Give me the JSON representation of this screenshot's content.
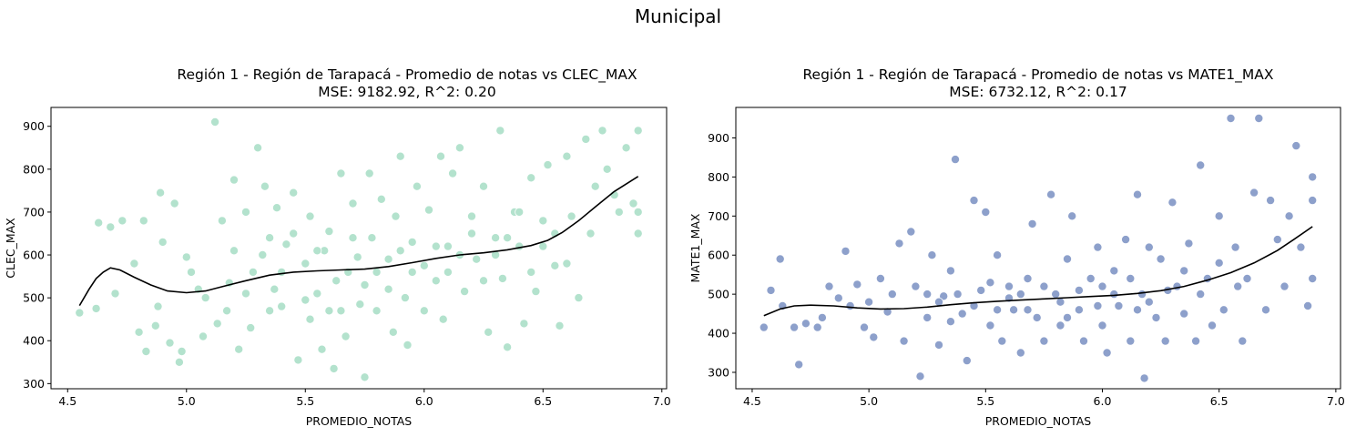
{
  "figure_title": "Municipal",
  "chart_data": [
    {
      "type": "scatter",
      "title": "Región 1 - Región de Tarapacá - Promedio de notas vs CLEC_MAX",
      "subtitle": "MSE: 9182.92, R^2: 0.20",
      "xlabel": "PROMEDIO_NOTAS",
      "ylabel": "CLEC_MAX",
      "xlim": [
        4.43,
        7.02
      ],
      "ylim": [
        288,
        944
      ],
      "xticks": [
        4.5,
        5.0,
        5.5,
        6.0,
        6.5,
        7.0
      ],
      "xtick_labels": [
        "4.5",
        "5.0",
        "5.5",
        "6.0",
        "6.5",
        "7.0"
      ],
      "yticks": [
        300,
        400,
        500,
        600,
        700,
        800,
        900
      ],
      "ytick_labels": [
        "300",
        "400",
        "500",
        "600",
        "700",
        "800",
        "900"
      ],
      "grid": false,
      "point_color": "#b3e2cd",
      "line_color": "#000000",
      "points": [
        [
          4.55,
          465
        ],
        [
          4.62,
          475
        ],
        [
          4.63,
          675
        ],
        [
          4.68,
          665
        ],
        [
          4.7,
          510
        ],
        [
          4.73,
          680
        ],
        [
          4.78,
          580
        ],
        [
          4.8,
          420
        ],
        [
          4.82,
          680
        ],
        [
          4.83,
          375
        ],
        [
          4.87,
          435
        ],
        [
          4.88,
          480
        ],
        [
          4.89,
          745
        ],
        [
          4.9,
          630
        ],
        [
          4.93,
          395
        ],
        [
          4.95,
          720
        ],
        [
          4.97,
          350
        ],
        [
          4.98,
          375
        ],
        [
          5.0,
          595
        ],
        [
          5.02,
          560
        ],
        [
          5.05,
          520
        ],
        [
          5.07,
          410
        ],
        [
          5.08,
          500
        ],
        [
          5.12,
          910
        ],
        [
          5.13,
          440
        ],
        [
          5.15,
          680
        ],
        [
          5.17,
          470
        ],
        [
          5.18,
          535
        ],
        [
          5.2,
          775
        ],
        [
          5.22,
          380
        ],
        [
          5.25,
          700
        ],
        [
          5.27,
          430
        ],
        [
          5.3,
          850
        ],
        [
          5.32,
          600
        ],
        [
          5.33,
          760
        ],
        [
          5.35,
          640
        ],
        [
          5.37,
          520
        ],
        [
          5.38,
          710
        ],
        [
          5.4,
          480
        ],
        [
          5.42,
          625
        ],
        [
          5.45,
          745
        ],
        [
          5.47,
          355
        ],
        [
          5.5,
          580
        ],
        [
          5.5,
          495
        ],
        [
          5.52,
          690
        ],
        [
          5.55,
          510
        ],
        [
          5.57,
          380
        ],
        [
          5.6,
          655
        ],
        [
          5.62,
          335
        ],
        [
          5.63,
          540
        ],
        [
          5.65,
          790
        ],
        [
          5.67,
          410
        ],
        [
          5.7,
          720
        ],
        [
          5.72,
          595
        ],
        [
          5.73,
          485
        ],
        [
          5.75,
          315
        ],
        [
          5.77,
          790
        ],
        [
          5.78,
          640
        ],
        [
          5.8,
          560
        ],
        [
          5.82,
          730
        ],
        [
          5.85,
          590
        ],
        [
          5.87,
          420
        ],
        [
          5.88,
          690
        ],
        [
          5.9,
          830
        ],
        [
          5.92,
          500
        ],
        [
          5.93,
          390
        ],
        [
          5.95,
          630
        ],
        [
          5.97,
          760
        ],
        [
          6.0,
          575
        ],
        [
          6.0,
          470
        ],
        [
          6.02,
          705
        ],
        [
          6.05,
          540
        ],
        [
          6.07,
          830
        ],
        [
          6.08,
          450
        ],
        [
          6.1,
          620
        ],
        [
          6.12,
          790
        ],
        [
          6.15,
          850
        ],
        [
          6.17,
          515
        ],
        [
          6.2,
          690
        ],
        [
          6.22,
          590
        ],
        [
          6.25,
          760
        ],
        [
          6.27,
          420
        ],
        [
          6.3,
          640
        ],
        [
          6.32,
          890
        ],
        [
          6.33,
          545
        ],
        [
          6.35,
          385
        ],
        [
          6.38,
          700
        ],
        [
          6.4,
          620
        ],
        [
          6.42,
          440
        ],
        [
          6.45,
          780
        ],
        [
          6.47,
          515
        ],
        [
          6.5,
          680
        ],
        [
          6.52,
          810
        ],
        [
          6.55,
          575
        ],
        [
          6.57,
          435
        ],
        [
          6.6,
          830
        ],
        [
          6.62,
          690
        ],
        [
          6.65,
          500
        ],
        [
          6.68,
          870
        ],
        [
          6.7,
          650
        ],
        [
          6.72,
          760
        ],
        [
          6.75,
          890
        ],
        [
          6.77,
          800
        ],
        [
          6.8,
          740
        ],
        [
          6.82,
          700
        ],
        [
          6.85,
          850
        ],
        [
          6.88,
          720
        ],
        [
          6.9,
          650
        ],
        [
          6.9,
          890
        ],
        [
          6.9,
          700
        ],
        [
          5.2,
          610
        ],
        [
          5.28,
          560
        ],
        [
          5.35,
          470
        ],
        [
          5.4,
          560
        ],
        [
          5.45,
          650
        ],
        [
          5.52,
          450
        ],
        [
          5.58,
          610
        ],
        [
          5.6,
          470
        ],
        [
          5.68,
          560
        ],
        [
          5.7,
          640
        ],
        [
          5.75,
          530
        ],
        [
          5.8,
          470
        ],
        [
          5.85,
          520
        ],
        [
          5.9,
          610
        ],
        [
          5.95,
          560
        ],
        [
          6.05,
          620
        ],
        [
          6.1,
          560
        ],
        [
          6.15,
          600
        ],
        [
          6.2,
          650
        ],
        [
          6.25,
          540
        ],
        [
          6.3,
          600
        ],
        [
          6.35,
          640
        ],
        [
          6.4,
          700
        ],
        [
          6.45,
          560
        ],
        [
          6.5,
          620
        ],
        [
          6.55,
          650
        ],
        [
          6.6,
          580
        ],
        [
          5.25,
          510
        ],
        [
          5.55,
          610
        ],
        [
          5.65,
          470
        ]
      ],
      "fit_curve": [
        [
          4.55,
          482
        ],
        [
          4.59,
          520
        ],
        [
          4.62,
          545
        ],
        [
          4.65,
          560
        ],
        [
          4.68,
          570
        ],
        [
          4.72,
          565
        ],
        [
          4.78,
          548
        ],
        [
          4.85,
          530
        ],
        [
          4.92,
          516
        ],
        [
          5.0,
          512
        ],
        [
          5.08,
          516
        ],
        [
          5.15,
          526
        ],
        [
          5.25,
          540
        ],
        [
          5.35,
          553
        ],
        [
          5.45,
          560
        ],
        [
          5.55,
          563
        ],
        [
          5.65,
          565
        ],
        [
          5.75,
          567
        ],
        [
          5.85,
          573
        ],
        [
          5.95,
          582
        ],
        [
          6.05,
          592
        ],
        [
          6.15,
          600
        ],
        [
          6.25,
          605
        ],
        [
          6.35,
          612
        ],
        [
          6.45,
          622
        ],
        [
          6.52,
          634
        ],
        [
          6.58,
          652
        ],
        [
          6.65,
          680
        ],
        [
          6.72,
          712
        ],
        [
          6.8,
          748
        ],
        [
          6.9,
          783
        ]
      ]
    },
    {
      "type": "scatter",
      "title": "Región 1 - Región de Tarapacá - Promedio de notas vs MATE1_MAX",
      "subtitle": "MSE: 6732.12, R^2: 0.17",
      "xlabel": "PROMEDIO_NOTAS",
      "ylabel": "MATE1_MAX",
      "xlim": [
        4.43,
        7.02
      ],
      "ylim": [
        258,
        978
      ],
      "xticks": [
        4.5,
        5.0,
        5.5,
        6.0,
        6.5,
        7.0
      ],
      "xtick_labels": [
        "4.5",
        "5.0",
        "5.5",
        "6.0",
        "6.5",
        "7.0"
      ],
      "yticks": [
        300,
        400,
        500,
        600,
        700,
        800,
        900
      ],
      "ytick_labels": [
        "300",
        "400",
        "500",
        "600",
        "700",
        "800",
        "900"
      ],
      "grid": false,
      "point_color": "#8da0cb",
      "line_color": "#000000",
      "points": [
        [
          4.55,
          415
        ],
        [
          4.58,
          510
        ],
        [
          4.62,
          590
        ],
        [
          4.63,
          470
        ],
        [
          4.68,
          415
        ],
        [
          4.7,
          320
        ],
        [
          4.73,
          425
        ],
        [
          4.78,
          415
        ],
        [
          4.8,
          440
        ],
        [
          4.83,
          520
        ],
        [
          4.87,
          490
        ],
        [
          4.9,
          610
        ],
        [
          4.92,
          470
        ],
        [
          4.95,
          525
        ],
        [
          4.98,
          415
        ],
        [
          5.0,
          480
        ],
        [
          5.02,
          390
        ],
        [
          5.05,
          540
        ],
        [
          5.08,
          455
        ],
        [
          5.1,
          500
        ],
        [
          5.13,
          630
        ],
        [
          5.15,
          380
        ],
        [
          5.18,
          660
        ],
        [
          5.2,
          520
        ],
        [
          5.22,
          290
        ],
        [
          5.25,
          440
        ],
        [
          5.27,
          600
        ],
        [
          5.3,
          370
        ],
        [
          5.32,
          495
        ],
        [
          5.35,
          560
        ],
        [
          5.37,
          845
        ],
        [
          5.4,
          450
        ],
        [
          5.42,
          330
        ],
        [
          5.45,
          740
        ],
        [
          5.48,
          510
        ],
        [
          5.5,
          710
        ],
        [
          5.52,
          420
        ],
        [
          5.55,
          600
        ],
        [
          5.57,
          380
        ],
        [
          5.6,
          520
        ],
        [
          5.62,
          460
        ],
        [
          5.65,
          350
        ],
        [
          5.68,
          540
        ],
        [
          5.7,
          680
        ],
        [
          5.72,
          440
        ],
        [
          5.75,
          380
        ],
        [
          5.78,
          755
        ],
        [
          5.8,
          500
        ],
        [
          5.82,
          420
        ],
        [
          5.85,
          590
        ],
        [
          5.87,
          700
        ],
        [
          5.9,
          460
        ],
        [
          5.92,
          380
        ],
        [
          5.95,
          540
        ],
        [
          5.98,
          620
        ],
        [
          6.0,
          420
        ],
        [
          6.02,
          350
        ],
        [
          6.05,
          560
        ],
        [
          6.07,
          470
        ],
        [
          6.1,
          640
        ],
        [
          6.12,
          380
        ],
        [
          6.15,
          755
        ],
        [
          6.17,
          500
        ],
        [
          6.18,
          285
        ],
        [
          6.2,
          620
        ],
        [
          6.23,
          440
        ],
        [
          6.25,
          590
        ],
        [
          6.27,
          380
        ],
        [
          6.3,
          735
        ],
        [
          6.32,
          520
        ],
        [
          6.35,
          450
        ],
        [
          6.37,
          630
        ],
        [
          6.4,
          380
        ],
        [
          6.42,
          830
        ],
        [
          6.45,
          540
        ],
        [
          6.47,
          420
        ],
        [
          6.5,
          700
        ],
        [
          6.52,
          460
        ],
        [
          6.55,
          950
        ],
        [
          6.57,
          620
        ],
        [
          6.6,
          380
        ],
        [
          6.62,
          540
        ],
        [
          6.65,
          760
        ],
        [
          6.67,
          950
        ],
        [
          6.7,
          460
        ],
        [
          6.72,
          740
        ],
        [
          6.75,
          640
        ],
        [
          6.78,
          520
        ],
        [
          6.8,
          700
        ],
        [
          6.83,
          880
        ],
        [
          6.85,
          620
        ],
        [
          6.88,
          470
        ],
        [
          6.9,
          800
        ],
        [
          6.9,
          540
        ],
        [
          6.9,
          740
        ],
        [
          5.3,
          480
        ],
        [
          5.38,
          500
        ],
        [
          5.45,
          470
        ],
        [
          5.52,
          530
        ],
        [
          5.6,
          490
        ],
        [
          5.68,
          460
        ],
        [
          5.75,
          520
        ],
        [
          5.82,
          480
        ],
        [
          5.9,
          510
        ],
        [
          5.98,
          470
        ],
        [
          6.05,
          500
        ],
        [
          6.12,
          540
        ],
        [
          6.2,
          480
        ],
        [
          6.28,
          510
        ],
        [
          6.35,
          560
        ],
        [
          6.42,
          500
        ],
        [
          6.5,
          580
        ],
        [
          6.58,
          520
        ],
        [
          5.25,
          500
        ],
        [
          5.35,
          430
        ],
        [
          5.55,
          460
        ],
        [
          5.65,
          500
        ],
        [
          5.85,
          440
        ],
        [
          6.0,
          520
        ],
        [
          6.15,
          460
        ]
      ],
      "fit_curve": [
        [
          4.55,
          445
        ],
        [
          4.62,
          462
        ],
        [
          4.68,
          470
        ],
        [
          4.75,
          472
        ],
        [
          4.85,
          470
        ],
        [
          4.95,
          465
        ],
        [
          5.05,
          462
        ],
        [
          5.15,
          463
        ],
        [
          5.25,
          467
        ],
        [
          5.35,
          473
        ],
        [
          5.45,
          478
        ],
        [
          5.55,
          482
        ],
        [
          5.65,
          485
        ],
        [
          5.75,
          488
        ],
        [
          5.85,
          491
        ],
        [
          5.95,
          494
        ],
        [
          6.05,
          497
        ],
        [
          6.15,
          502
        ],
        [
          6.25,
          509
        ],
        [
          6.35,
          520
        ],
        [
          6.45,
          536
        ],
        [
          6.55,
          555
        ],
        [
          6.65,
          580
        ],
        [
          6.75,
          612
        ],
        [
          6.82,
          640
        ],
        [
          6.9,
          673
        ]
      ]
    }
  ]
}
